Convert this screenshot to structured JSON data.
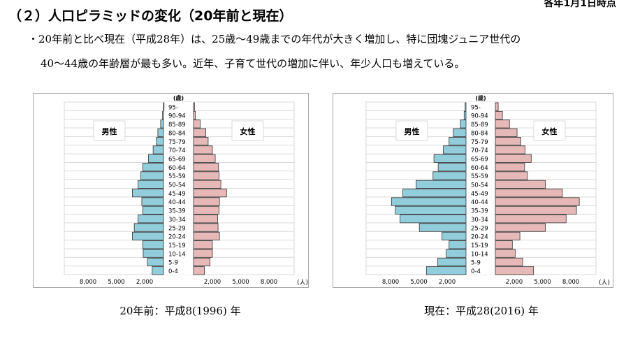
{
  "header": {
    "date_note": "各年1月1日時点",
    "title": "（２）人口ピラミッドの変化（20年前と現在）",
    "bullet_line1": "・20年前と比べ現在（平成28年）は、25歳～49歳までの年代が大きく増加し、特に団塊ジュニア世代の",
    "bullet_line2": "40～44歳の年齢層が最も多い。近年、子育て世代の増加に伴い、年少人口も増えている。"
  },
  "colors": {
    "male": "#92cddc",
    "female": "#e6b9b8",
    "outline": "#333333",
    "grid": "#d9d9d9"
  },
  "chart_data": [
    {
      "type": "bar",
      "orientation": "horizontal-pyramid",
      "caption": "20年前：平成8(1996) 年",
      "age_unit_label": "(歳)",
      "value_unit_label": "(人)",
      "x_tick_labels": [
        "8,000",
        "5,000",
        "2,000",
        "2,000",
        "5,000",
        "8,000"
      ],
      "categories": [
        "95-",
        "90-94",
        "85-89",
        "80-84",
        "75-79",
        "70-74",
        "65-69",
        "60-64",
        "55-59",
        "50-54",
        "45-49",
        "40-44",
        "35-39",
        "30-34",
        "25-29",
        "20-24",
        "15-19",
        "10-14",
        "5-9",
        "0-4"
      ],
      "series": [
        {
          "name": "男性",
          "values": [
            0,
            100,
            300,
            600,
            750,
            1100,
            1600,
            2200,
            2400,
            2700,
            3300,
            2300,
            2200,
            2700,
            3100,
            3300,
            2200,
            2150,
            1700,
            1200
          ]
        },
        {
          "name": "女性",
          "values": [
            100,
            200,
            700,
            1300,
            1550,
            2000,
            2300,
            2650,
            2700,
            2900,
            3500,
            2750,
            2700,
            2550,
            2600,
            2750,
            2000,
            2000,
            1750,
            1150
          ]
        }
      ]
    },
    {
      "type": "bar",
      "orientation": "horizontal-pyramid",
      "caption": "現在：平成28(2016) 年",
      "age_unit_label": "(歳)",
      "value_unit_label": "(人)",
      "x_tick_labels": [
        "8,000",
        "5,000",
        "2,000",
        "2,000",
        "5,000",
        "8,000"
      ],
      "categories": [
        "95-",
        "90-94",
        "85-89",
        "80-84",
        "75-79",
        "70-74",
        "65-69",
        "60-64",
        "55-59",
        "50-54",
        "45-49",
        "40-44",
        "35-39",
        "30-34",
        "25-29",
        "20-24",
        "15-19",
        "10-14",
        "5-9",
        "0-4"
      ],
      "series": [
        {
          "name": "男性",
          "values": [
            100,
            200,
            600,
            1350,
            1800,
            2400,
            3400,
            2950,
            3500,
            5300,
            6700,
            7900,
            7500,
            7000,
            4950,
            2550,
            1800,
            2100,
            3000,
            4200
          ]
        },
        {
          "name": "女性",
          "values": [
            300,
            750,
            1500,
            2300,
            2700,
            3150,
            3800,
            3100,
            3400,
            5300,
            7100,
            8900,
            8600,
            7500,
            5300,
            2600,
            1800,
            2100,
            2900,
            4050
          ]
        }
      ]
    }
  ]
}
